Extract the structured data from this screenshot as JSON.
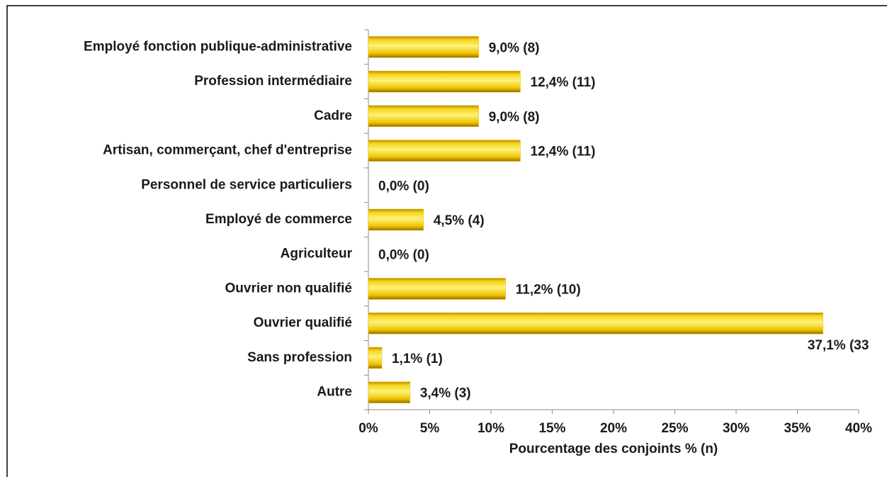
{
  "chart_data": {
    "type": "bar",
    "orientation": "horizontal",
    "categories": [
      "Employé fonction publique-administrative",
      "Profession intermédiaire",
      "Cadre",
      "Artisan, commerçant, chef d'entreprise",
      "Personnel de service particuliers",
      "Employé de commerce",
      "Agriculteur",
      "Ouvrier non qualifié",
      "Ouvrier qualifié",
      "Sans profession",
      "Autre"
    ],
    "values": [
      9.0,
      12.4,
      9.0,
      12.4,
      0.0,
      4.5,
      0.0,
      11.2,
      37.1,
      1.1,
      3.4
    ],
    "value_labels": [
      "9,0% (8)",
      "12,4% (11)",
      "9,0% (8)",
      "12,4% (11)",
      "0,0% (0)",
      "4,5% (4)",
      "0,0% (0)",
      "11,2% (10)",
      "37,1% (33",
      "1,1% (1)",
      "3,4% (3)"
    ],
    "color": "#f2c500",
    "xlabel": "Pourcentage des conjoints % (n)",
    "xlim": [
      0,
      40
    ],
    "xticks": [
      {
        "value": 0,
        "label": "0%"
      },
      {
        "value": 5,
        "label": "5%"
      },
      {
        "value": 10,
        "label": "10%"
      },
      {
        "value": 15,
        "label": "15%"
      },
      {
        "value": 20,
        "label": "20%"
      },
      {
        "value": 25,
        "label": "25%"
      },
      {
        "value": 30,
        "label": "30%"
      },
      {
        "value": 35,
        "label": "35%"
      },
      {
        "value": 40,
        "label": "40%"
      }
    ]
  }
}
